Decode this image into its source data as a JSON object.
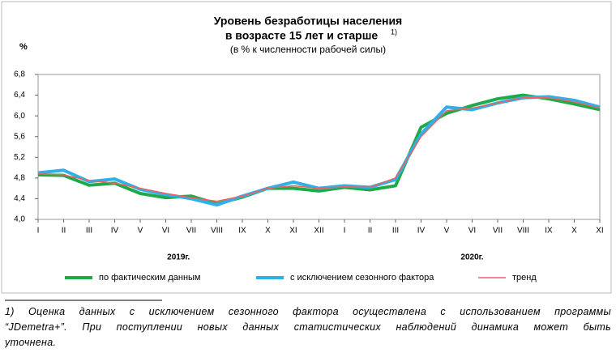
{
  "chart_data": {
    "type": "line",
    "title_lines": [
      "Уровень безработицы населения",
      "в возрасте 15 лет и старше"
    ],
    "title_note": "1)",
    "subtitle": "(в % к численности рабочей силы)",
    "y_label": "%",
    "categories": [
      "I",
      "II",
      "III",
      "IV",
      "V",
      "VI",
      "VII",
      "VIII",
      "IX",
      "X",
      "XI",
      "XII",
      "I",
      "II",
      "III",
      "IV",
      "V",
      "VI",
      "VII",
      "VIII",
      "IX",
      "X",
      "XI"
    ],
    "groups": [
      {
        "label": "2019г.",
        "start": 0,
        "end": 11
      },
      {
        "label": "2020г.",
        "start": 12,
        "end": 22
      }
    ],
    "series": [
      {
        "name": "по фактическим данным",
        "color": "#1faa4a",
        "width": 4,
        "values": [
          4.86,
          4.85,
          4.66,
          4.7,
          4.5,
          4.42,
          4.45,
          4.3,
          4.43,
          4.6,
          4.6,
          4.55,
          4.62,
          4.57,
          4.65,
          5.78,
          6.05,
          6.2,
          6.33,
          6.4,
          6.33,
          6.23,
          6.12
        ]
      },
      {
        "name": "с исключением сезонного фактора",
        "color": "#2eb0e8",
        "width": 4,
        "values": [
          4.9,
          4.95,
          4.73,
          4.78,
          4.58,
          4.48,
          4.4,
          4.28,
          4.45,
          4.6,
          4.72,
          4.6,
          4.65,
          4.62,
          4.77,
          5.65,
          6.17,
          6.12,
          6.25,
          6.35,
          6.37,
          6.3,
          6.17
        ]
      },
      {
        "name": "тренд",
        "color": "#f06060",
        "width": 1.5,
        "values": [
          4.88,
          4.86,
          4.75,
          4.7,
          4.6,
          4.5,
          4.42,
          4.35,
          4.45,
          4.6,
          4.65,
          4.6,
          4.63,
          4.62,
          4.8,
          5.6,
          6.1,
          6.15,
          6.25,
          6.35,
          6.35,
          6.27,
          6.15
        ]
      }
    ],
    "ylim": [
      4.0,
      6.8
    ],
    "yticks": [
      {
        "value": 4.0,
        "label": "4,0"
      },
      {
        "value": 4.4,
        "label": "4,4"
      },
      {
        "value": 4.8,
        "label": "4,8"
      },
      {
        "value": 5.2,
        "label": "5,2"
      },
      {
        "value": 5.6,
        "label": "5,6"
      },
      {
        "value": 6.0,
        "label": "6,0"
      },
      {
        "value": 6.4,
        "label": "6,4"
      },
      {
        "value": 6.8,
        "label": "6,8"
      }
    ],
    "grid": false,
    "legend": "bottom"
  },
  "footnote_lines": [
    "1) Оценка данных с исключением сезонного фактора осуществлена с использованием программы",
    "“JDemetra+”. При поступлении новых данных статистических наблюдений динамика может быть",
    "уточнена."
  ]
}
